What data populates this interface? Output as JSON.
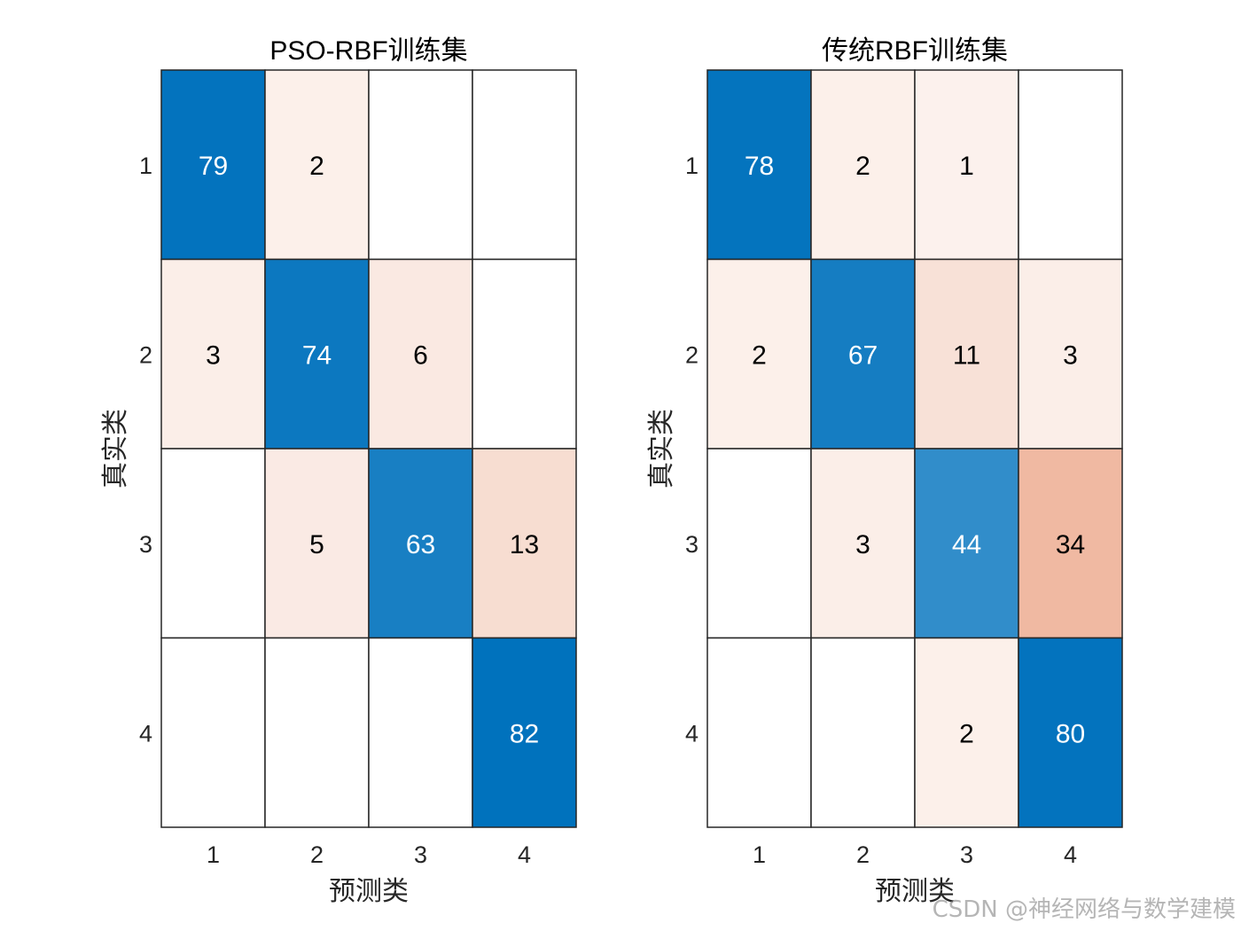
{
  "figure": {
    "watermark": "CSDN @神经网络与数学建模"
  },
  "chart_data": [
    {
      "type": "heatmap",
      "title": "PSO-RBF训练集",
      "xlabel": "预测类",
      "ylabel": "真实类",
      "x_categories": [
        "1",
        "2",
        "3",
        "4"
      ],
      "y_categories": [
        "1",
        "2",
        "3",
        "4"
      ],
      "matrix": [
        [
          79,
          2,
          0,
          0
        ],
        [
          3,
          74,
          6,
          0
        ],
        [
          0,
          5,
          63,
          13
        ],
        [
          0,
          0,
          0,
          82
        ]
      ],
      "diagonal_color": "#0072BD",
      "offdiagonal_color": "#D95319"
    },
    {
      "type": "heatmap",
      "title": "传统RBF训练集",
      "xlabel": "预测类",
      "ylabel": "真实类",
      "x_categories": [
        "1",
        "2",
        "3",
        "4"
      ],
      "y_categories": [
        "1",
        "2",
        "3",
        "4"
      ],
      "matrix": [
        [
          78,
          2,
          1,
          0
        ],
        [
          2,
          67,
          11,
          3
        ],
        [
          0,
          3,
          44,
          34
        ],
        [
          0,
          0,
          2,
          80
        ]
      ],
      "diagonal_color": "#0072BD",
      "offdiagonal_color": "#D95319"
    }
  ]
}
